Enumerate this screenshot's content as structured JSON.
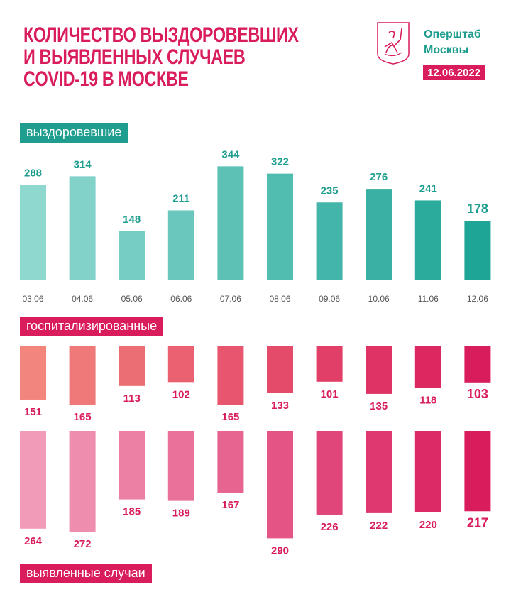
{
  "header": {
    "title_lines": [
      "КОЛИЧЕСТВО ВЫЗДОРОВЕВШИХ",
      "И ВЫЯВЛЕННЫХ СЛУЧАЕВ",
      "COVID-19 В МОСКВЕ"
    ],
    "org_lines": [
      "Оперштаб",
      "Москвы"
    ],
    "date": "12.06.2022",
    "logo": "moscow-coat-of-arms"
  },
  "colors": {
    "title": "#d91c5c",
    "teal": "#1f9e8f",
    "pink": "#d91c5c"
  },
  "chart_data": {
    "type": "bar",
    "categories": [
      "03.06",
      "04.06",
      "05.06",
      "06.06",
      "07.06",
      "08.06",
      "09.06",
      "10.06",
      "11.06",
      "12.06"
    ],
    "series": [
      {
        "name": "выздоровевшие",
        "values": [
          288,
          314,
          148,
          211,
          344,
          322,
          235,
          276,
          241,
          178
        ],
        "color_from": "#8fd8d0",
        "color_to": "#1fa596"
      },
      {
        "name": "госпитализированные",
        "values": [
          151,
          165,
          113,
          102,
          165,
          133,
          101,
          135,
          118,
          103
        ],
        "color_from": "#f2857c",
        "color_to": "#d91c5c"
      },
      {
        "name": "выявленные случаи",
        "values": [
          264,
          272,
          185,
          189,
          167,
          290,
          226,
          222,
          220,
          217
        ],
        "color_from": "#f29bb9",
        "color_to": "#d91c5c"
      }
    ],
    "ylim": [
      0,
      350
    ],
    "grid": false,
    "legend": "none"
  }
}
